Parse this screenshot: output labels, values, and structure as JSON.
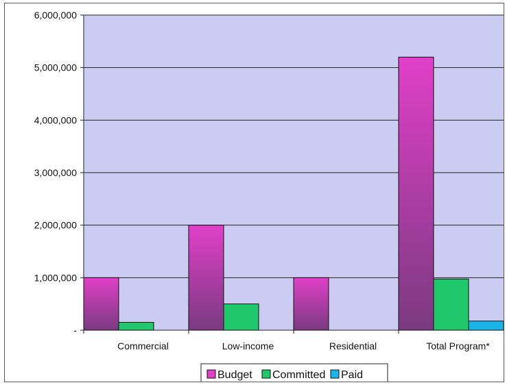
{
  "chart_data": {
    "type": "bar",
    "categories": [
      "Commercial",
      "Low-income",
      "Residential",
      "Total Program*"
    ],
    "series": [
      {
        "name": "Budget",
        "values": [
          1000000,
          2000000,
          1000000,
          5200000
        ]
      },
      {
        "name": "Committed",
        "values": [
          150000,
          500000,
          0,
          975000
        ]
      },
      {
        "name": "Paid",
        "values": [
          0,
          0,
          0,
          175000
        ]
      }
    ],
    "ylim": [
      0,
      6000000
    ],
    "yticks": [
      {
        "value": 0,
        "label": "-"
      },
      {
        "value": 1000000,
        "label": "1,000,000"
      },
      {
        "value": 2000000,
        "label": "2,000,000"
      },
      {
        "value": 3000000,
        "label": "3,000,000"
      },
      {
        "value": 4000000,
        "label": "4,000,000"
      },
      {
        "value": 5000000,
        "label": "5,000,000"
      },
      {
        "value": 6000000,
        "label": "6,000,000"
      }
    ],
    "grid": true,
    "legend_position": "bottom",
    "colors": {
      "Budget_top": "#e040c8",
      "Budget_bottom": "#7a3a80",
      "Committed": "#1fc86a",
      "Paid": "#19b5e8",
      "plot_bg": "#ccccf2"
    }
  }
}
